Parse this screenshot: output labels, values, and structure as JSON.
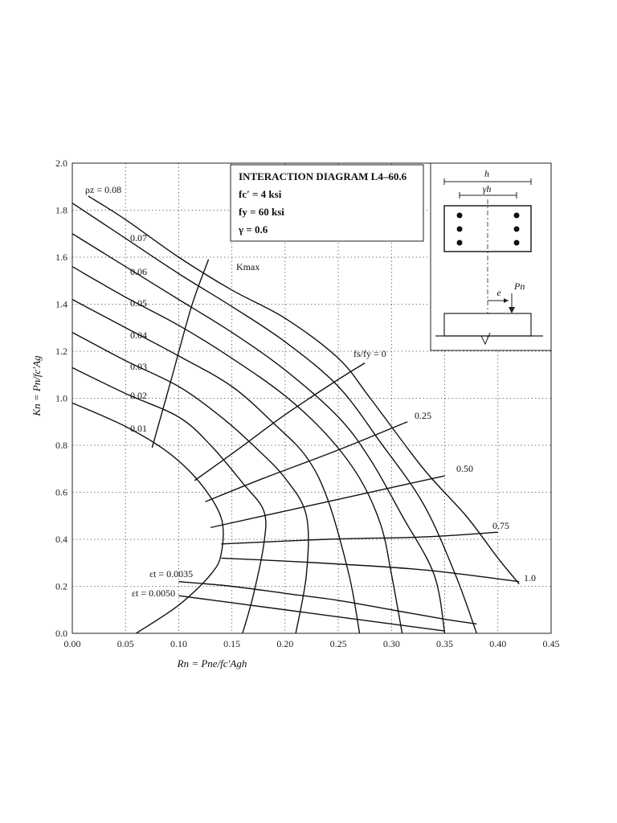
{
  "chart_data": {
    "type": "line",
    "title": "INTERACTION DIAGRAM L4–60.6",
    "info_lines": [
      "fc′ = 4 ksi",
      "fy = 60 ksi",
      "γ = 0.6"
    ],
    "xlabel": "Rn = Pne/fc′Agh",
    "ylabel": "Kn = Pn/fc′Ag",
    "xlim": [
      0.0,
      0.45
    ],
    "ylim": [
      0.0,
      2.0
    ],
    "x_ticks": [
      "0.00",
      "0.05",
      "0.10",
      "0.15",
      "0.20",
      "0.25",
      "0.30",
      "0.35",
      "0.40",
      "0.45"
    ],
    "y_ticks": [
      "0.0",
      "0.2",
      "0.4",
      "0.6",
      "0.8",
      "1.0",
      "1.2",
      "1.4",
      "1.6",
      "1.8",
      "2.0"
    ],
    "grid": true,
    "series": [
      {
        "name": "ρz = 0.08",
        "x": [
          0.015,
          0.05,
          0.1,
          0.15,
          0.2,
          0.25,
          0.28,
          0.33,
          0.37,
          0.4,
          0.42
        ],
        "y": [
          1.86,
          1.76,
          1.6,
          1.46,
          1.34,
          1.17,
          1.0,
          0.7,
          0.5,
          0.32,
          0.21
        ]
      },
      {
        "name": "0.07",
        "x": [
          0.0,
          0.05,
          0.1,
          0.15,
          0.2,
          0.25,
          0.29,
          0.33,
          0.36,
          0.38
        ],
        "y": [
          1.83,
          1.68,
          1.53,
          1.39,
          1.24,
          1.05,
          0.81,
          0.55,
          0.25,
          0.0
        ]
      },
      {
        "name": "0.06",
        "x": [
          0.0,
          0.05,
          0.1,
          0.15,
          0.2,
          0.25,
          0.28,
          0.31,
          0.34,
          0.35
        ],
        "y": [
          1.7,
          1.56,
          1.42,
          1.28,
          1.12,
          0.92,
          0.74,
          0.5,
          0.25,
          0.0
        ]
      },
      {
        "name": "0.05",
        "x": [
          0.0,
          0.05,
          0.1,
          0.15,
          0.2,
          0.24,
          0.27,
          0.29,
          0.3,
          0.31
        ],
        "y": [
          1.56,
          1.43,
          1.31,
          1.17,
          1.01,
          0.84,
          0.66,
          0.46,
          0.25,
          0.0
        ]
      },
      {
        "name": "0.04",
        "x": [
          0.0,
          0.05,
          0.1,
          0.15,
          0.19,
          0.22,
          0.24,
          0.26,
          0.27
        ],
        "y": [
          1.42,
          1.3,
          1.18,
          1.05,
          0.89,
          0.75,
          0.57,
          0.25,
          0.0
        ]
      },
      {
        "name": "0.03",
        "x": [
          0.0,
          0.05,
          0.1,
          0.14,
          0.17,
          0.2,
          0.22,
          0.22,
          0.21
        ],
        "y": [
          1.28,
          1.16,
          1.05,
          0.92,
          0.8,
          0.66,
          0.5,
          0.25,
          0.0
        ]
      },
      {
        "name": "0.02",
        "x": [
          0.0,
          0.05,
          0.1,
          0.13,
          0.16,
          0.18,
          0.18,
          0.17,
          0.16
        ],
        "y": [
          1.13,
          1.02,
          0.92,
          0.8,
          0.64,
          0.52,
          0.38,
          0.16,
          0.0
        ]
      },
      {
        "name": "0.01",
        "x": [
          0.0,
          0.05,
          0.09,
          0.12,
          0.14,
          0.14,
          0.13,
          0.1,
          0.06
        ],
        "y": [
          0.98,
          0.88,
          0.77,
          0.64,
          0.49,
          0.34,
          0.25,
          0.12,
          0.0
        ]
      },
      {
        "name": "Kmax",
        "x": [
          0.075,
          0.093,
          0.112,
          0.128
        ],
        "y": [
          0.79,
          1.08,
          1.39,
          1.59
        ]
      },
      {
        "name": "fs/fy = 0",
        "x": [
          0.115,
          0.155,
          0.2,
          0.25,
          0.275
        ],
        "y": [
          0.65,
          0.78,
          0.93,
          1.08,
          1.15
        ]
      },
      {
        "name": "0.25",
        "x": [
          0.125,
          0.18,
          0.25,
          0.315
        ],
        "y": [
          0.56,
          0.66,
          0.78,
          0.9
        ]
      },
      {
        "name": "0.50",
        "x": [
          0.13,
          0.2,
          0.27,
          0.35
        ],
        "y": [
          0.45,
          0.52,
          0.59,
          0.67
        ]
      },
      {
        "name": "0.75",
        "x": [
          0.14,
          0.24,
          0.33,
          0.4
        ],
        "y": [
          0.38,
          0.4,
          0.41,
          0.43
        ]
      },
      {
        "name": "1.0",
        "x": [
          0.14,
          0.23,
          0.33,
          0.42
        ],
        "y": [
          0.32,
          0.3,
          0.27,
          0.22
        ]
      },
      {
        "name": "εt = 0.0035",
        "x": [
          0.1,
          0.15,
          0.2,
          0.25,
          0.3,
          0.35,
          0.38
        ],
        "y": [
          0.22,
          0.2,
          0.17,
          0.14,
          0.1,
          0.06,
          0.04
        ]
      },
      {
        "name": "εt = 0.0050",
        "x": [
          0.1,
          0.15,
          0.2,
          0.25,
          0.3,
          0.35
        ],
        "y": [
          0.16,
          0.13,
          0.1,
          0.07,
          0.04,
          0.01
        ]
      }
    ],
    "label_positions_series": [
      "ρz = 0.08",
      "0.07",
      "0.06",
      "0.05",
      "0.04",
      "0.03",
      "0.02",
      "0.01",
      "Kmax",
      "fs/fy = 0",
      "0.25",
      "0.50",
      "0.75",
      "1.0",
      "εt = 0.0035",
      "εt = 0.0050"
    ]
  },
  "inset": {
    "h_label": "h",
    "gamma_h_label": "γh",
    "e_label": "e",
    "pn_label": "Pn"
  }
}
